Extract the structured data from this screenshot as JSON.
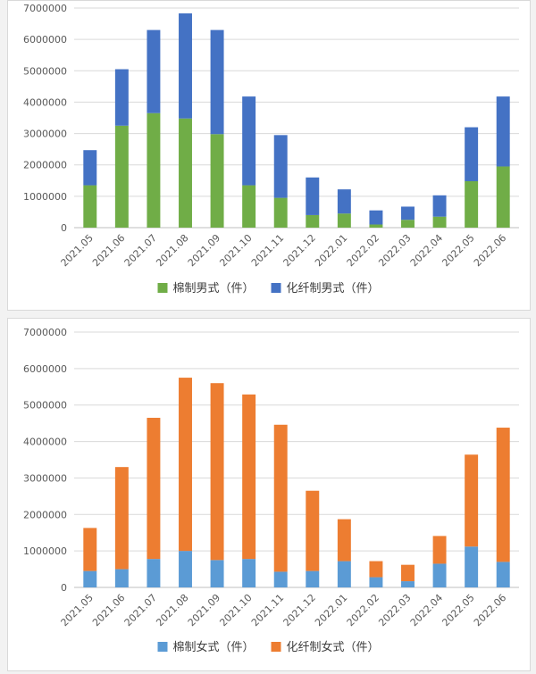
{
  "chart_data": [
    {
      "type": "bar",
      "stacked": true,
      "categories": [
        "2021.05",
        "2021.06",
        "2021.07",
        "2021.08",
        "2021.09",
        "2021.10",
        "2021.11",
        "2021.12",
        "2022.01",
        "2022.02",
        "2022.03",
        "2022.04",
        "2022.05",
        "2022.06"
      ],
      "series": [
        {
          "name": "棉制男式（件）",
          "color": "#70ad47",
          "values": [
            1350000,
            3250000,
            3650000,
            3480000,
            2980000,
            1350000,
            950000,
            400000,
            450000,
            100000,
            250000,
            350000,
            1480000,
            1950000
          ]
        },
        {
          "name": "化纤制男式（件）",
          "color": "#4472c4",
          "values": [
            1120000,
            1800000,
            2650000,
            3350000,
            3320000,
            2830000,
            2000000,
            1200000,
            770000,
            450000,
            420000,
            680000,
            1720000,
            2230000
          ]
        }
      ],
      "yticks": [
        "0",
        "1000000",
        "2000000",
        "3000000",
        "4000000",
        "5000000",
        "6000000",
        "7000000"
      ],
      "ylim": [
        0,
        7000000
      ],
      "grid": true,
      "legend": "bottom"
    },
    {
      "type": "bar",
      "stacked": true,
      "categories": [
        "2021.05",
        "2021.06",
        "2021.07",
        "2021.08",
        "2021.09",
        "2021.10",
        "2021.11",
        "2021.12",
        "2022.01",
        "2022.02",
        "2022.03",
        "2022.04",
        "2022.05",
        "2022.06"
      ],
      "series": [
        {
          "name": "棉制女式（件）",
          "color": "#5b9bd5",
          "values": [
            450000,
            500000,
            780000,
            1000000,
            750000,
            780000,
            430000,
            450000,
            720000,
            280000,
            170000,
            650000,
            1120000,
            700000
          ]
        },
        {
          "name": "化纤制女式（件）",
          "color": "#ed7d31",
          "values": [
            1180000,
            2800000,
            3870000,
            4750000,
            4850000,
            4510000,
            4030000,
            2200000,
            1150000,
            440000,
            450000,
            760000,
            2520000,
            3680000
          ]
        }
      ],
      "yticks": [
        "0",
        "1000000",
        "2000000",
        "3000000",
        "4000000",
        "5000000",
        "6000000",
        "7000000"
      ],
      "ylim": [
        0,
        7000000
      ],
      "grid": true,
      "legend": "bottom"
    }
  ]
}
